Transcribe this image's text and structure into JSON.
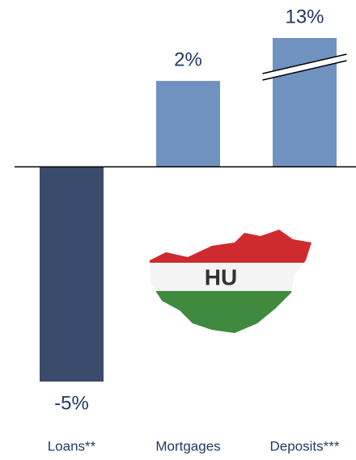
{
  "chart_data": {
    "type": "bar",
    "categories": [
      "Loans**",
      "Mortgages",
      "Deposits***"
    ],
    "values": [
      -5,
      2,
      13
    ],
    "value_labels": [
      "-5%",
      "2%",
      "13%"
    ],
    "colors": [
      "#3b4b6c",
      "#7092c1",
      "#7092c1"
    ],
    "ylim": [
      -5,
      3
    ],
    "axis_break": true,
    "annotation": "HU"
  }
}
